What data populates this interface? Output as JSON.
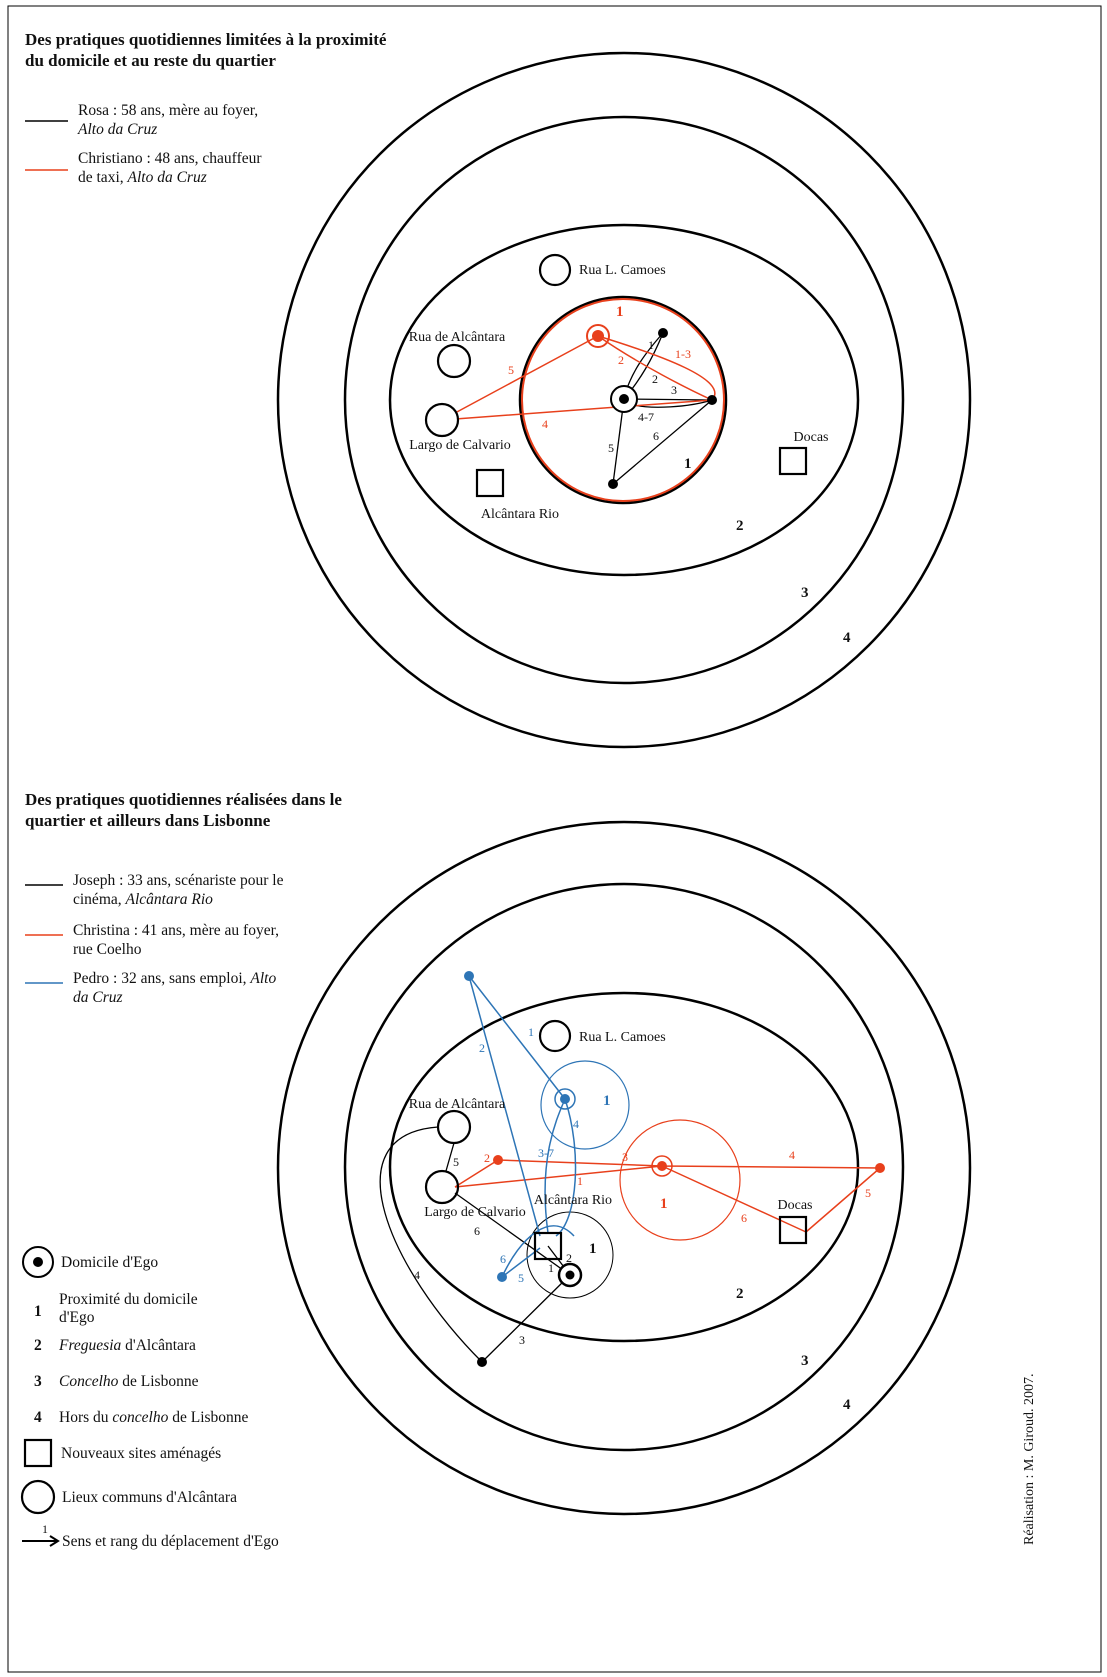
{
  "panels": [
    {
      "title": [
        "Des pratiques quotidiennes limitées à la proximité",
        "du domicile et au reste du quartier"
      ],
      "legend": [
        {
          "lines": [
            {
              "text": "Rosa : 58 ans, mère au foyer,"
            },
            {
              "italic": "Alto da Cruz"
            }
          ]
        },
        {
          "lines": [
            {
              "text": "Christiano : 48 ans, chauffeur"
            },
            {
              "text": "de taxi, ",
              "italic": "Alto da Cruz"
            }
          ]
        }
      ],
      "places": [
        "Rua L. Camoes",
        "Rua de Alcântara",
        "Largo de Calvario",
        "Alcântara Rio",
        "Docas"
      ],
      "zones": [
        "1",
        "2",
        "3",
        "4"
      ],
      "ego_zones": [
        "1"
      ],
      "edge_labels": [
        "1",
        "2",
        "3",
        "4-7",
        "5",
        "6",
        "1-3",
        "2",
        "4",
        "5"
      ]
    },
    {
      "title": [
        "Des pratiques quotidiennes réalisées dans le",
        "quartier et ailleurs dans Lisbonne"
      ],
      "legend": [
        {
          "lines": [
            {
              "text": "Joseph : 33 ans, scénariste pour le"
            },
            {
              "text": "cinéma, ",
              "italic": "Alcântara Rio"
            }
          ]
        },
        {
          "lines": [
            {
              "text": "Christina : 41 ans, mère au foyer,"
            },
            {
              "text": "rue Coelho"
            }
          ]
        },
        {
          "lines": [
            {
              "text": "Pedro : 32 ans, sans emploi, ",
              "italic": "Alto"
            },
            {
              "italic": "da Cruz"
            }
          ]
        }
      ],
      "places": [
        "Rua L. Camoes",
        "Rua de Alcântara",
        "Largo de Calvario",
        "Alcântara Rio",
        "Docas"
      ],
      "zones": [
        "2",
        "3",
        "4"
      ],
      "ego_zones": [
        "1",
        "1",
        "1"
      ],
      "edge_labels": [
        "1",
        "2",
        "3",
        "4",
        "5",
        "6",
        "1",
        "2",
        "3",
        "4",
        "5",
        "6",
        "1",
        "2",
        "3-7",
        "4",
        "5",
        "6"
      ]
    }
  ],
  "key": [
    {
      "text": "Domicile d'Ego"
    },
    {
      "number": "1",
      "lines": [
        "Proximité du domicile",
        "d'Ego"
      ]
    },
    {
      "number": "2",
      "italic": "Freguesia",
      "text": " d'Alcântara"
    },
    {
      "number": "3",
      "italic": "Concelho",
      "text": " de Lisbonne"
    },
    {
      "number": "4",
      "text": "Hors du ",
      "italic": "concelho",
      "text2": " de Lisbonne"
    },
    {
      "text": "Nouveaux sites aménagés"
    },
    {
      "text": "Lieux communs d'Alcântara"
    },
    {
      "number": "1",
      "text": "Sens et rang du déplacement d'Ego"
    }
  ],
  "credit": "Réalisation : M. Giroud. 2007."
}
